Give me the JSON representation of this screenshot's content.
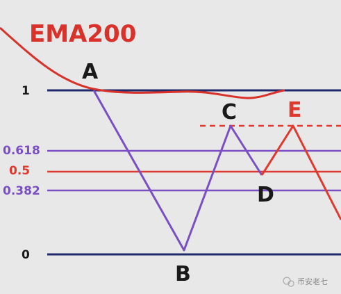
{
  "title": "EMA200",
  "colors": {
    "background": "#e8e8e8",
    "ema": "#d8322a",
    "navy": "#1f2a6b",
    "purple": "#7a4fc4",
    "red": "#e03a2f",
    "black": "#1a1a1a"
  },
  "levels": {
    "l1": "1",
    "l0618": "0.618",
    "l05": "0.5",
    "l0382": "0.382",
    "l0": "0"
  },
  "points": {
    "a": "A",
    "b": "B",
    "c": "C",
    "d": "D",
    "e": "E"
  },
  "watermark": "币安老七",
  "watermark_icon": "wechat-icon"
}
